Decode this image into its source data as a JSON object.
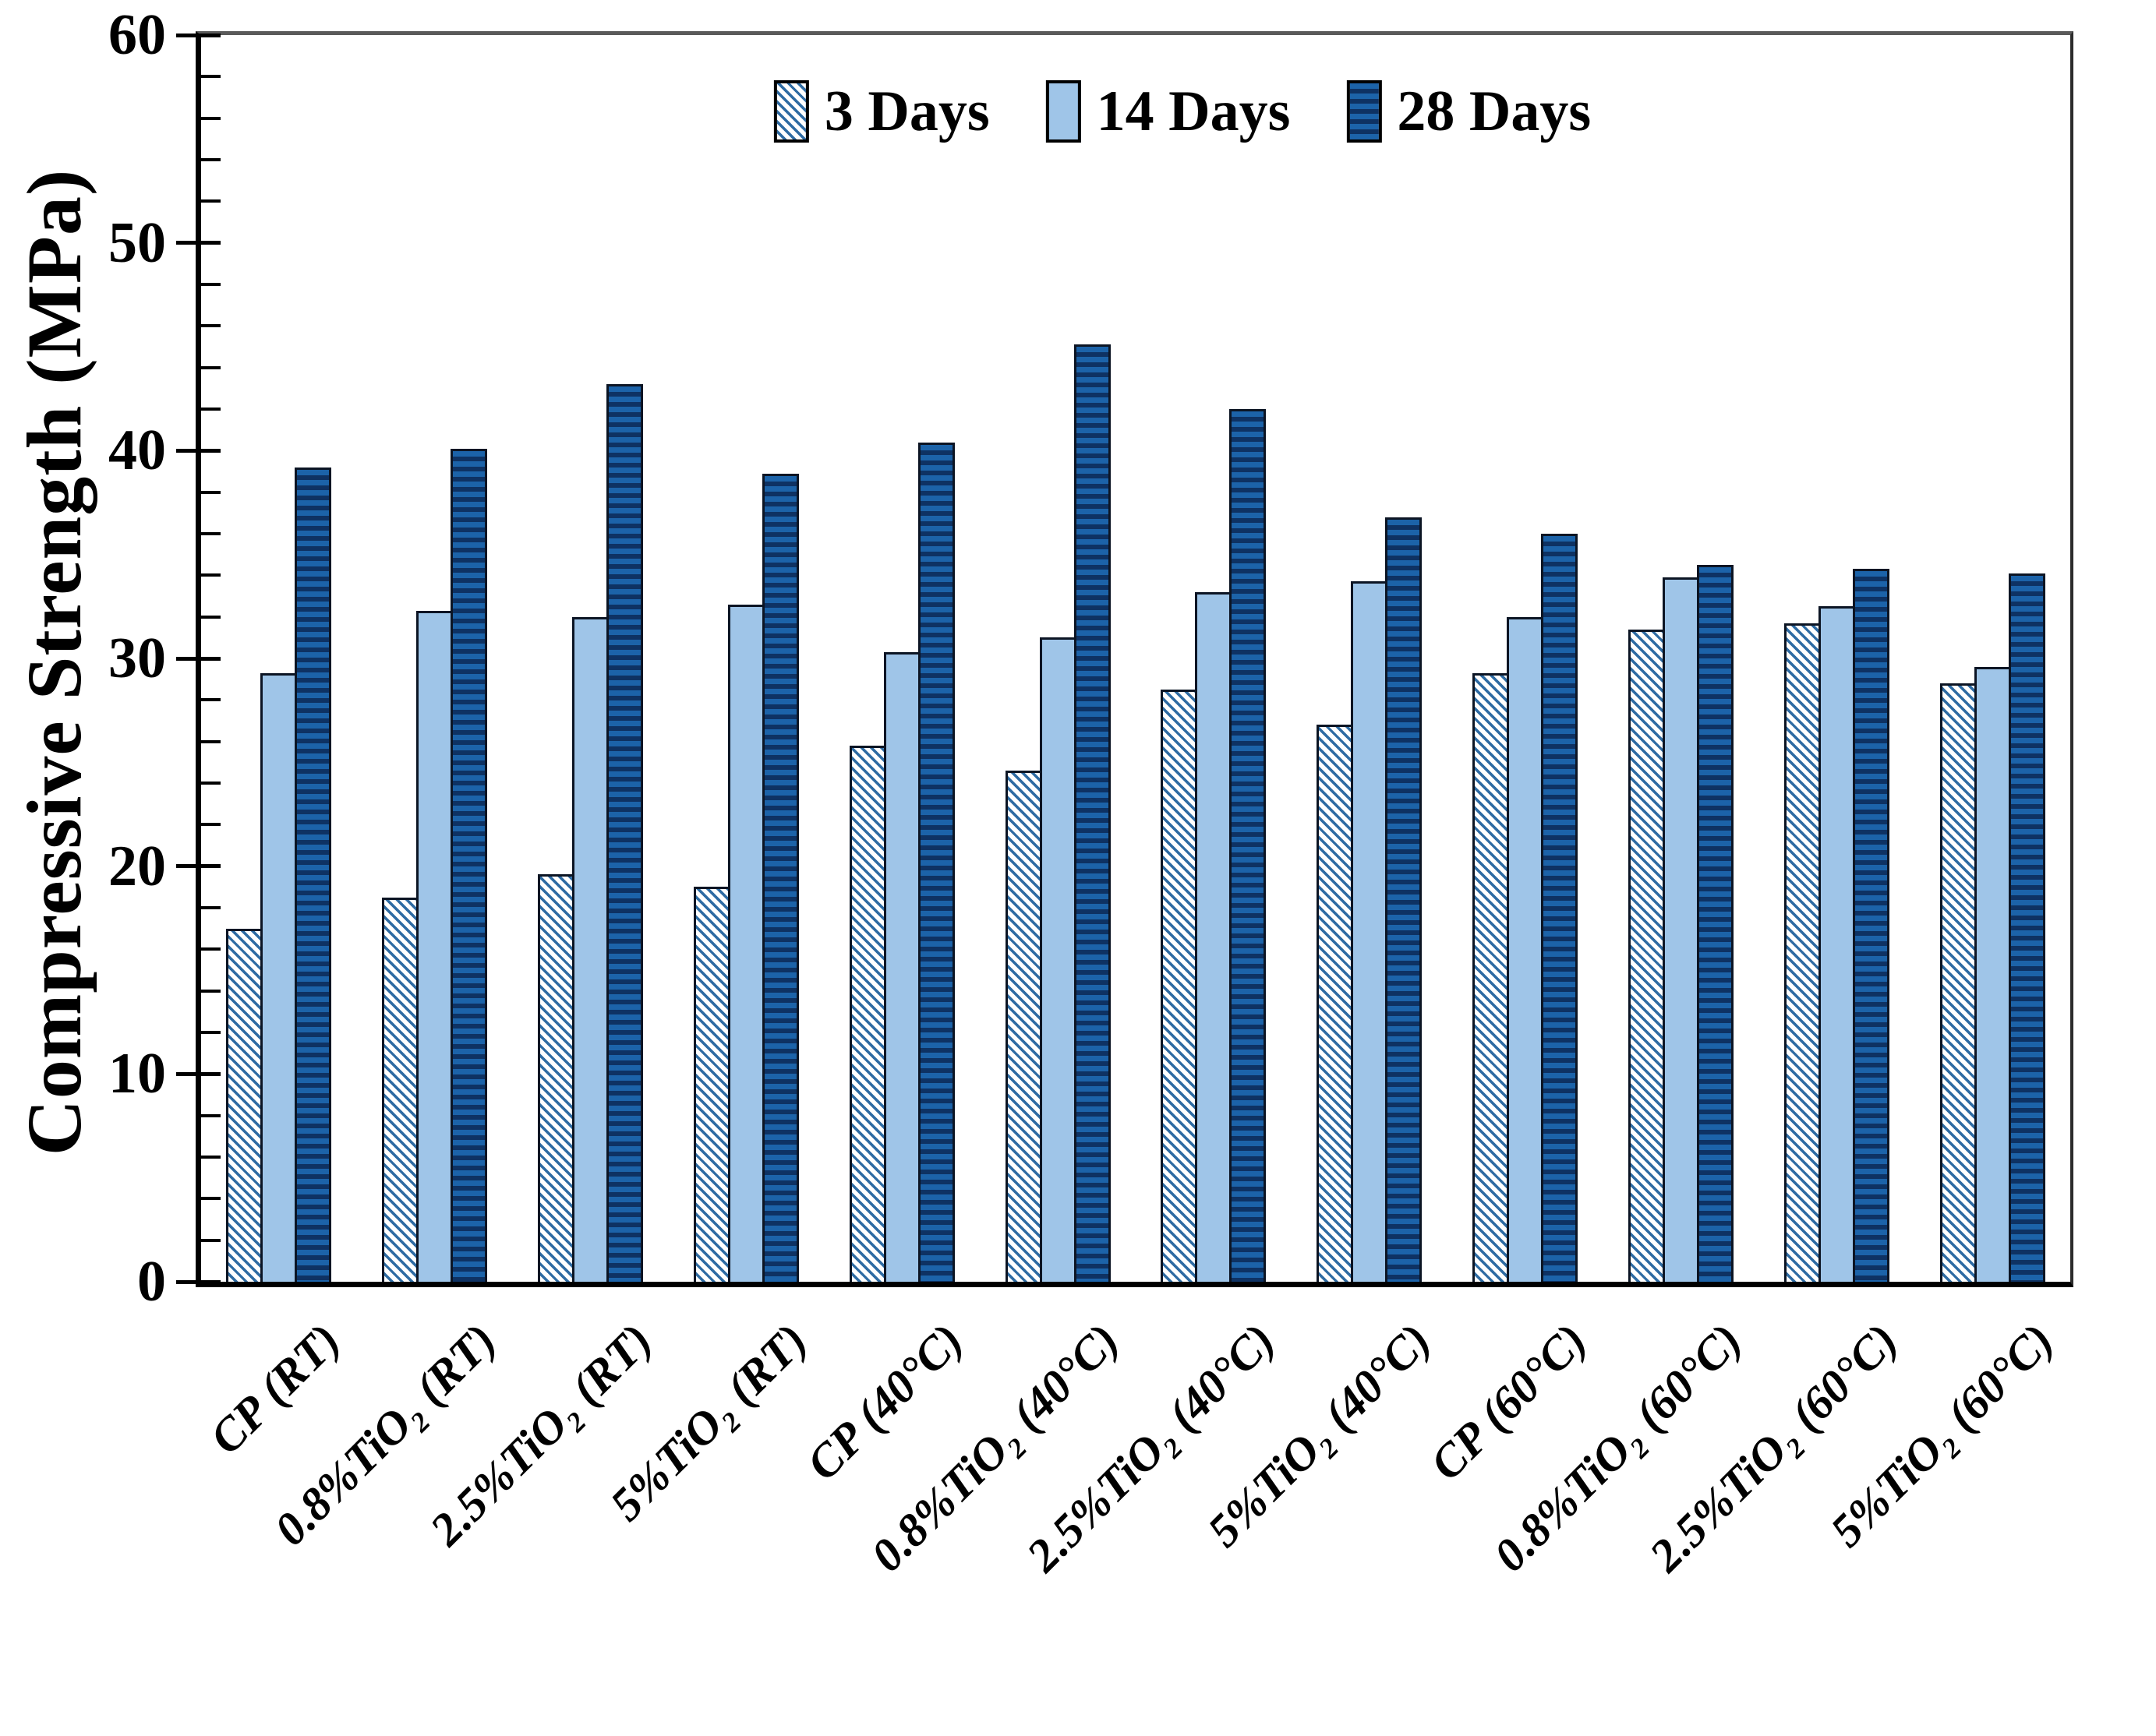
{
  "y_axis": {
    "title": "Compressive Strength (MPa)",
    "min": 0,
    "max": 60,
    "major_step": 10,
    "minor_step": 2,
    "tick_labels": [
      "0",
      "10",
      "20",
      "30",
      "40",
      "50",
      "60"
    ]
  },
  "legend": {
    "position": "top-center",
    "items": [
      "3 Days",
      "14 Days",
      "28 Days"
    ]
  },
  "colors": {
    "hatch_stripe_blue": "#2e6ba3",
    "light_blue": "#9fc5e8",
    "dark_blue": "#1c63a9",
    "dark_stripe": "#0e3263",
    "bar_border": "#0c1524",
    "axis_black": "#000000",
    "frame_gray": "#5a5a5a",
    "background": "#ffffff"
  },
  "chart_data": {
    "type": "bar",
    "title": "",
    "xlabel": "",
    "ylabel": "Compressive Strength (MPa)",
    "ylim": [
      0,
      60
    ],
    "y_major_tick": 10,
    "y_minor_tick": 2,
    "grid": false,
    "legend_position": "top-center",
    "categories": [
      "CP (RT)",
      "0.8%TiO₂ (RT)",
      "2.5%TiO₂ (RT)",
      "5%TiO₂ (RT)",
      "CP (40°C)",
      "0.8%TiO₂ (40°C)",
      "2.5%TiO₂ (40°C)",
      "5%TiO₂ (40°C)",
      "CP (60°C)",
      "0.8%TiO₂ (60°C)",
      "2.5%TiO₂ (60°C)",
      "5%TiO₂ (60°C)"
    ],
    "series": [
      {
        "name": "3 Days",
        "pattern": "diagonal-hatch-white-blue",
        "values": [
          17.0,
          18.5,
          19.6,
          19.0,
          25.8,
          24.6,
          28.5,
          26.8,
          29.3,
          31.4,
          31.7,
          28.8
        ]
      },
      {
        "name": "14 Days",
        "pattern": "solid-light-blue",
        "values": [
          29.3,
          32.3,
          32.0,
          32.6,
          30.3,
          31.0,
          33.2,
          33.7,
          32.0,
          33.9,
          32.5,
          29.6
        ]
      },
      {
        "name": "28 Days",
        "pattern": "horizontal-stripe-dark-blue",
        "values": [
          39.2,
          40.1,
          43.2,
          38.9,
          40.4,
          45.1,
          42.0,
          36.8,
          36.0,
          34.5,
          34.3,
          34.1
        ]
      }
    ]
  }
}
